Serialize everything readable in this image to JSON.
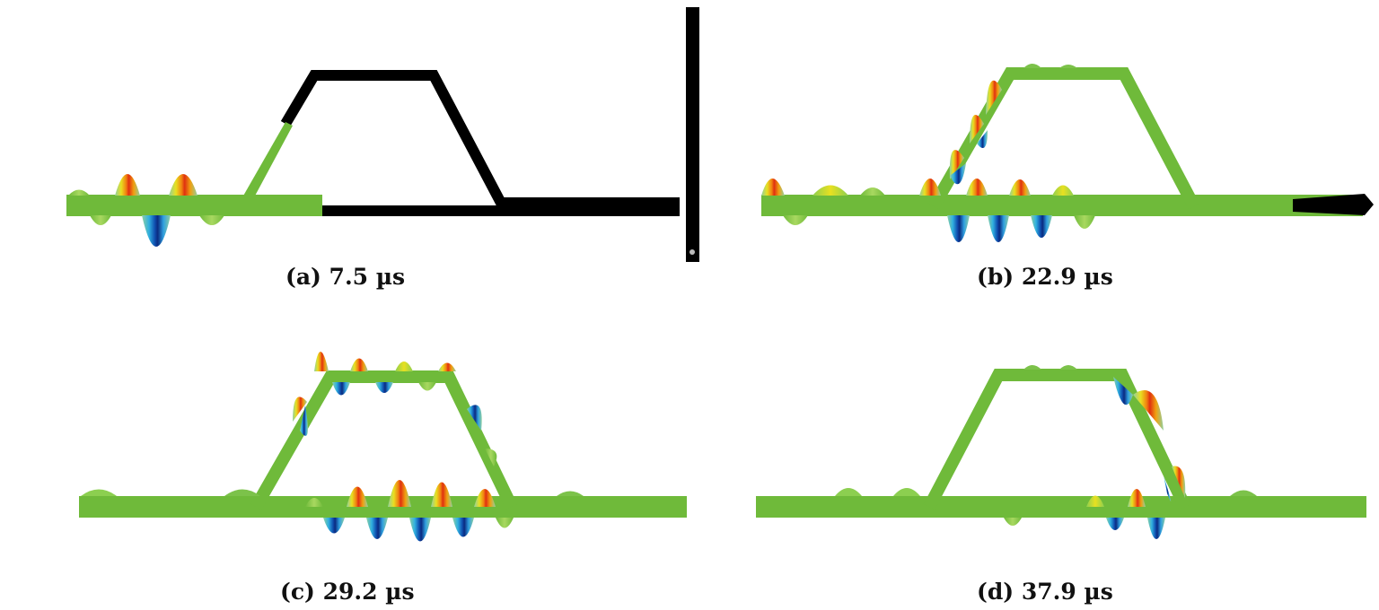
{
  "panels": [
    {
      "id": "a",
      "caption": "(a) 7.5 µs"
    },
    {
      "id": "b",
      "caption": "(b) 22.9 µs"
    },
    {
      "id": "c",
      "caption": "(c) 29.2 µs"
    },
    {
      "id": "d",
      "caption": "(d) 37.9 µs"
    }
  ],
  "colors": {
    "structure": "#000000",
    "plate_green": "#6fba3a",
    "plate_dark_green": "#4f9a2a",
    "light_green": "#8fd0a0",
    "yellow": "#e8e020",
    "orange": "#f08010",
    "red": "#e03010",
    "cyan": "#30b0e0",
    "blue": "#1050b0",
    "dark_blue": "#0a2a80"
  }
}
